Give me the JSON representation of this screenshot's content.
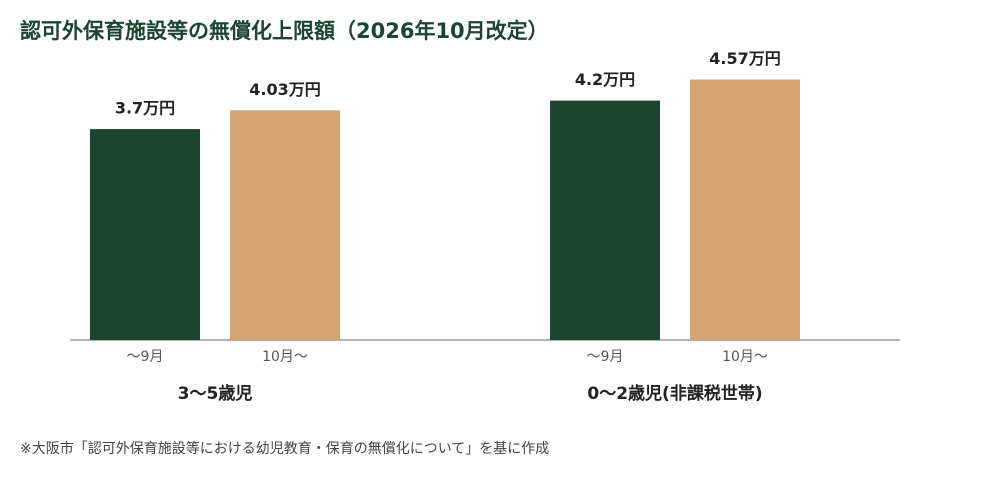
{
  "chart_data": {
    "type": "bar",
    "title": "認可外保育施設等の無償化上限額（2026年10月改定）",
    "categories": [
      "3〜5歳児",
      "0〜2歳児(非課税世帯)"
    ],
    "series": [
      {
        "name": "〜9月",
        "color": "#1c4530",
        "values": [
          3.7,
          4.2
        ],
        "value_labels": [
          "3.7万円",
          "4.2万円"
        ]
      },
      {
        "name": "10月〜",
        "color": "#d4a373",
        "values": [
          4.03,
          4.57
        ],
        "value_labels": [
          "4.03万円",
          "4.57万円"
        ]
      }
    ],
    "note": "※大阪市「認可外保育施設等における幼児教育・保育の無償化について」を基に作成"
  }
}
